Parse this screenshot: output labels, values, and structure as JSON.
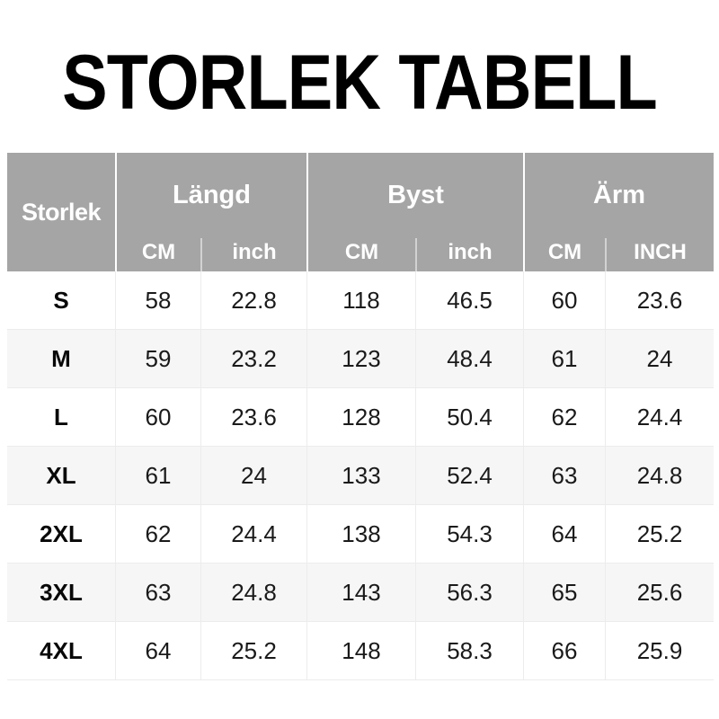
{
  "title": "STORLEK TABELL",
  "table": {
    "size_col_header": "Storlek",
    "groups": [
      {
        "label": "Längd",
        "sub": [
          "CM",
          "inch"
        ]
      },
      {
        "label": "Byst",
        "sub": [
          "CM",
          "inch"
        ]
      },
      {
        "label": "Ärm",
        "sub": [
          "CM",
          "INCH"
        ]
      }
    ],
    "rows": [
      {
        "size": "S",
        "values": [
          "58",
          "22.8",
          "118",
          "46.5",
          "60",
          "23.6"
        ]
      },
      {
        "size": "M",
        "values": [
          "59",
          "23.2",
          "123",
          "48.4",
          "61",
          "24"
        ]
      },
      {
        "size": "L",
        "values": [
          "60",
          "23.6",
          "128",
          "50.4",
          "62",
          "24.4"
        ]
      },
      {
        "size": "XL",
        "values": [
          "61",
          "24",
          "133",
          "52.4",
          "63",
          "24.8"
        ]
      },
      {
        "size": "2XL",
        "values": [
          "62",
          "24.4",
          "138",
          "54.3",
          "64",
          "25.2"
        ]
      },
      {
        "size": "3XL",
        "values": [
          "63",
          "24.8",
          "143",
          "56.3",
          "65",
          "25.6"
        ]
      },
      {
        "size": "4XL",
        "values": [
          "64",
          "25.2",
          "148",
          "58.3",
          "66",
          "25.9"
        ]
      }
    ]
  },
  "colors": {
    "header_bg": "#a5a5a5",
    "header_text": "#ffffff",
    "alt_row_bg": "#f6f6f6",
    "grid_line": "#ececec",
    "title_text": "#000000"
  },
  "chart_data": {
    "type": "table",
    "title": "STORLEK TABELL",
    "columns": [
      "Storlek",
      "Längd CM",
      "Längd inch",
      "Byst CM",
      "Byst inch",
      "Ärm CM",
      "Ärm INCH"
    ],
    "rows": [
      [
        "S",
        58,
        22.8,
        118,
        46.5,
        60,
        23.6
      ],
      [
        "M",
        59,
        23.2,
        123,
        48.4,
        61,
        24
      ],
      [
        "L",
        60,
        23.6,
        128,
        50.4,
        62,
        24.4
      ],
      [
        "XL",
        61,
        24,
        133,
        52.4,
        63,
        24.8
      ],
      [
        "2XL",
        62,
        24.4,
        138,
        54.3,
        64,
        25.2
      ],
      [
        "3XL",
        63,
        24.8,
        143,
        56.3,
        65,
        25.6
      ],
      [
        "4XL",
        64,
        25.2,
        148,
        58.3,
        66,
        25.9
      ]
    ]
  }
}
